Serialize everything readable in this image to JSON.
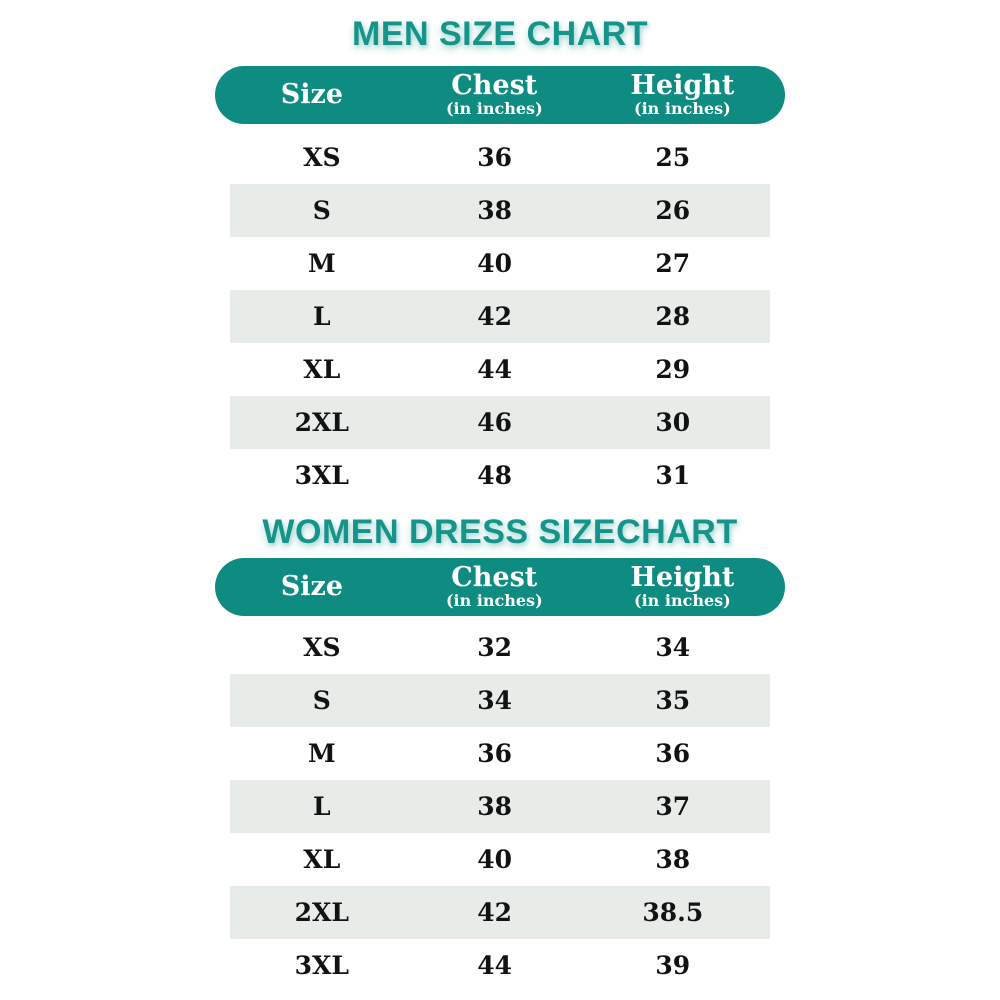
{
  "page": {
    "background": "#ffffff"
  },
  "colors": {
    "teal_header": "#0e8c82",
    "teal_title": "#16948a",
    "title_glow": "#8ccdc7",
    "row_stripe": "#e7ece9",
    "text": "#121212",
    "header_text": "#ffffff"
  },
  "men": {
    "title": "MEN SIZE CHART",
    "columns": [
      {
        "label": "Size",
        "sub": ""
      },
      {
        "label": "Chest",
        "sub": "(in inches)"
      },
      {
        "label": "Height",
        "sub": "(in inches)"
      }
    ],
    "rows": [
      [
        "XS",
        "36",
        "25"
      ],
      [
        "S",
        "38",
        "26"
      ],
      [
        "M",
        "40",
        "27"
      ],
      [
        "L",
        "42",
        "28"
      ],
      [
        "XL",
        "44",
        "29"
      ],
      [
        "2XL",
        "46",
        "30"
      ],
      [
        "3XL",
        "48",
        "31"
      ]
    ]
  },
  "women": {
    "title": "WOMEN DRESS SIZECHART",
    "columns": [
      {
        "label": "Size",
        "sub": ""
      },
      {
        "label": "Chest",
        "sub": "(in inches)"
      },
      {
        "label": "Height",
        "sub": "(in inches)"
      }
    ],
    "rows": [
      [
        "XS",
        "32",
        "34"
      ],
      [
        "S",
        "34",
        "35"
      ],
      [
        "M",
        "36",
        "36"
      ],
      [
        "L",
        "38",
        "37"
      ],
      [
        "XL",
        "40",
        "38"
      ],
      [
        "2XL",
        "42",
        "38.5"
      ],
      [
        "3XL",
        "44",
        "39"
      ]
    ]
  }
}
